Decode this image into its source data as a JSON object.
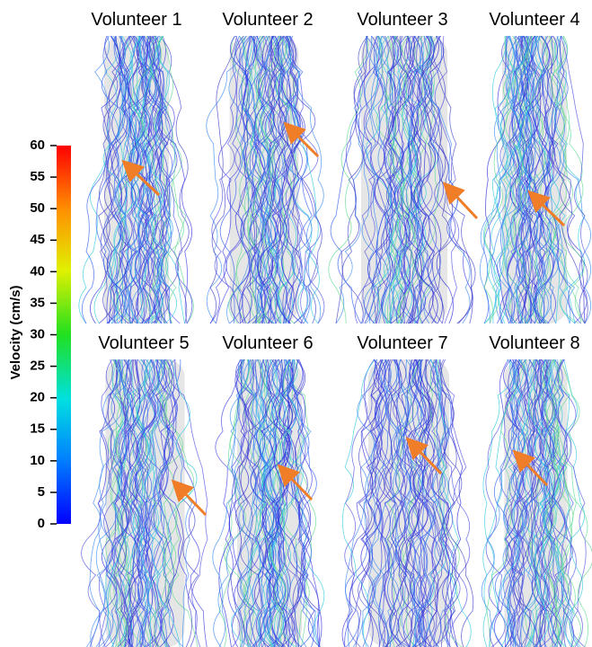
{
  "colorbar": {
    "label": "Velocity (cm/s)",
    "lim": [
      0,
      60
    ],
    "ticks": [
      0,
      5,
      10,
      15,
      20,
      25,
      30,
      35,
      40,
      45,
      50,
      55,
      60
    ]
  },
  "panels": [
    {
      "title": "Volunteer 1"
    },
    {
      "title": "Volunteer 2"
    },
    {
      "title": "Volunteer 3"
    },
    {
      "title": "Volunteer 4"
    },
    {
      "title": "Volunteer 5"
    },
    {
      "title": "Volunteer 6"
    },
    {
      "title": "Volunteer 7"
    },
    {
      "title": "Volunteer 8"
    }
  ]
}
